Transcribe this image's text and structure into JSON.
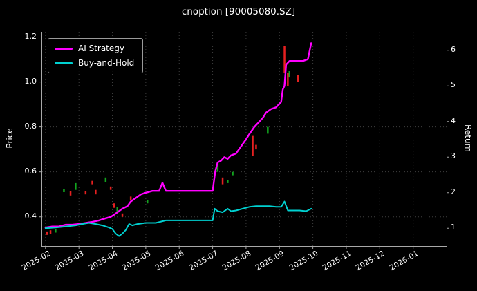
{
  "title": "cnoption [90005080.SZ]",
  "axes": {
    "left_label": "Price",
    "right_label": "Return"
  },
  "chart_data": {
    "type": "line",
    "title": "cnoption [90005080.SZ]",
    "xlabel": "",
    "ylabel_left": "Price",
    "ylabel_right": "Return",
    "grid": true,
    "legend_position": "upper-left",
    "x_tick_labels": [
      "2025-02",
      "2025-03",
      "2025-04",
      "2025-05",
      "2025-06",
      "2025-07",
      "2025-08",
      "2025-09",
      "2025-10",
      "2025-11",
      "2025-12",
      "2026-01"
    ],
    "xlim_months": [
      -0.1,
      12.0
    ],
    "left_axis": {
      "ticks": [
        0.4,
        0.6,
        0.8,
        1.0,
        1.2
      ],
      "tick_labels": [
        "0.4",
        "0.6",
        "0.8",
        "1.0",
        "1.2"
      ],
      "lim": [
        0.27,
        1.22
      ]
    },
    "right_axis": {
      "ticks": [
        1,
        2,
        3,
        4,
        5,
        6
      ],
      "tick_labels": [
        "1",
        "2",
        "3",
        "4",
        "5",
        "6"
      ],
      "lim": [
        0.5,
        6.5
      ]
    },
    "series": [
      {
        "name": "AI Strategy",
        "color": "#ff00ff",
        "axis": "right",
        "width": 2.4,
        "points": [
          [
            0.0,
            1.02
          ],
          [
            0.2,
            1.05
          ],
          [
            0.4,
            1.05
          ],
          [
            0.6,
            1.1
          ],
          [
            0.8,
            1.1
          ],
          [
            1.0,
            1.12
          ],
          [
            1.2,
            1.15
          ],
          [
            1.4,
            1.18
          ],
          [
            1.6,
            1.22
          ],
          [
            1.8,
            1.28
          ],
          [
            1.95,
            1.32
          ],
          [
            2.05,
            1.38
          ],
          [
            2.15,
            1.45
          ],
          [
            2.3,
            1.55
          ],
          [
            2.45,
            1.62
          ],
          [
            2.55,
            1.75
          ],
          [
            2.7,
            1.85
          ],
          [
            2.85,
            1.95
          ],
          [
            3.0,
            2.0
          ],
          [
            3.2,
            2.05
          ],
          [
            3.4,
            2.05
          ],
          [
            3.5,
            2.28
          ],
          [
            3.6,
            2.05
          ],
          [
            3.8,
            2.05
          ],
          [
            4.2,
            2.05
          ],
          [
            4.6,
            2.05
          ],
          [
            5.0,
            2.05
          ],
          [
            5.08,
            2.6
          ],
          [
            5.15,
            2.85
          ],
          [
            5.25,
            2.9
          ],
          [
            5.35,
            3.0
          ],
          [
            5.45,
            2.95
          ],
          [
            5.55,
            3.05
          ],
          [
            5.7,
            3.1
          ],
          [
            5.85,
            3.3
          ],
          [
            6.0,
            3.5
          ],
          [
            6.1,
            3.65
          ],
          [
            6.25,
            3.85
          ],
          [
            6.4,
            4.0
          ],
          [
            6.5,
            4.1
          ],
          [
            6.6,
            4.25
          ],
          [
            6.75,
            4.35
          ],
          [
            6.9,
            4.4
          ],
          [
            7.0,
            4.5
          ],
          [
            7.05,
            4.55
          ],
          [
            7.1,
            4.9
          ],
          [
            7.15,
            5.0
          ],
          [
            7.2,
            5.6
          ],
          [
            7.3,
            5.7
          ],
          [
            7.5,
            5.7
          ],
          [
            7.7,
            5.7
          ],
          [
            7.85,
            5.75
          ],
          [
            7.95,
            6.2
          ]
        ]
      },
      {
        "name": "Buy-and-Hold",
        "color": "#00d1d1",
        "axis": "right",
        "width": 2.0,
        "points": [
          [
            0.0,
            1.0
          ],
          [
            0.3,
            1.02
          ],
          [
            0.6,
            1.05
          ],
          [
            0.9,
            1.08
          ],
          [
            1.1,
            1.12
          ],
          [
            1.3,
            1.15
          ],
          [
            1.5,
            1.12
          ],
          [
            1.7,
            1.08
          ],
          [
            1.9,
            1.02
          ],
          [
            2.0,
            0.98
          ],
          [
            2.1,
            0.85
          ],
          [
            2.2,
            0.78
          ],
          [
            2.3,
            0.85
          ],
          [
            2.4,
            0.95
          ],
          [
            2.5,
            1.12
          ],
          [
            2.6,
            1.08
          ],
          [
            2.75,
            1.12
          ],
          [
            3.0,
            1.15
          ],
          [
            3.3,
            1.15
          ],
          [
            3.6,
            1.22
          ],
          [
            4.0,
            1.22
          ],
          [
            4.5,
            1.22
          ],
          [
            5.0,
            1.22
          ],
          [
            5.06,
            1.55
          ],
          [
            5.15,
            1.48
          ],
          [
            5.3,
            1.45
          ],
          [
            5.45,
            1.55
          ],
          [
            5.55,
            1.48
          ],
          [
            5.7,
            1.5
          ],
          [
            5.9,
            1.55
          ],
          [
            6.1,
            1.6
          ],
          [
            6.3,
            1.62
          ],
          [
            6.5,
            1.62
          ],
          [
            6.7,
            1.62
          ],
          [
            6.9,
            1.6
          ],
          [
            7.05,
            1.6
          ],
          [
            7.15,
            1.75
          ],
          [
            7.25,
            1.5
          ],
          [
            7.4,
            1.5
          ],
          [
            7.6,
            1.5
          ],
          [
            7.8,
            1.48
          ],
          [
            7.95,
            1.55
          ]
        ]
      }
    ],
    "price_marks": [
      {
        "x": 0.05,
        "lo": 0.32,
        "hi": 0.335,
        "c": "r"
      },
      {
        "x": 0.15,
        "lo": 0.325,
        "hi": 0.34,
        "c": "r"
      },
      {
        "x": 0.3,
        "lo": 0.33,
        "hi": 0.345,
        "c": "g"
      },
      {
        "x": 0.55,
        "lo": 0.51,
        "hi": 0.525,
        "c": "g"
      },
      {
        "x": 0.75,
        "lo": 0.495,
        "hi": 0.515,
        "c": "r"
      },
      {
        "x": 0.9,
        "lo": 0.52,
        "hi": 0.55,
        "c": "g"
      },
      {
        "x": 1.2,
        "lo": 0.5,
        "hi": 0.515,
        "c": "r"
      },
      {
        "x": 1.4,
        "lo": 0.545,
        "hi": 0.56,
        "c": "r"
      },
      {
        "x": 1.5,
        "lo": 0.5,
        "hi": 0.52,
        "c": "r"
      },
      {
        "x": 1.8,
        "lo": 0.555,
        "hi": 0.575,
        "c": "g"
      },
      {
        "x": 1.95,
        "lo": 0.52,
        "hi": 0.535,
        "c": "r"
      },
      {
        "x": 2.05,
        "lo": 0.44,
        "hi": 0.46,
        "c": "r"
      },
      {
        "x": 2.15,
        "lo": 0.42,
        "hi": 0.445,
        "c": "g"
      },
      {
        "x": 2.3,
        "lo": 0.4,
        "hi": 0.415,
        "c": "r"
      },
      {
        "x": 2.55,
        "lo": 0.475,
        "hi": 0.49,
        "c": "r"
      },
      {
        "x": 3.05,
        "lo": 0.46,
        "hi": 0.475,
        "c": "g"
      },
      {
        "x": 5.15,
        "lo": 0.6,
        "hi": 0.645,
        "c": "g"
      },
      {
        "x": 5.3,
        "lo": 0.545,
        "hi": 0.575,
        "c": "r"
      },
      {
        "x": 5.45,
        "lo": 0.55,
        "hi": 0.565,
        "c": "g"
      },
      {
        "x": 5.6,
        "lo": 0.585,
        "hi": 0.6,
        "c": "g"
      },
      {
        "x": 6.2,
        "lo": 0.67,
        "hi": 0.76,
        "c": "r"
      },
      {
        "x": 6.3,
        "lo": 0.7,
        "hi": 0.72,
        "c": "r"
      },
      {
        "x": 6.65,
        "lo": 0.77,
        "hi": 0.8,
        "c": "g"
      },
      {
        "x": 7.15,
        "lo": 1.04,
        "hi": 1.16,
        "c": "r"
      },
      {
        "x": 7.25,
        "lo": 0.98,
        "hi": 1.04,
        "c": "r"
      },
      {
        "x": 7.3,
        "lo": 1.02,
        "hi": 1.05,
        "c": "g"
      },
      {
        "x": 7.55,
        "lo": 1.0,
        "hi": 1.03,
        "c": "r"
      }
    ],
    "colors": {
      "background": "#000000",
      "text": "#ffffff",
      "grid": "#3f3f3f",
      "axis_border": "#a8a8a8",
      "mark_red": "#e62020",
      "mark_green": "#12a51e"
    }
  }
}
